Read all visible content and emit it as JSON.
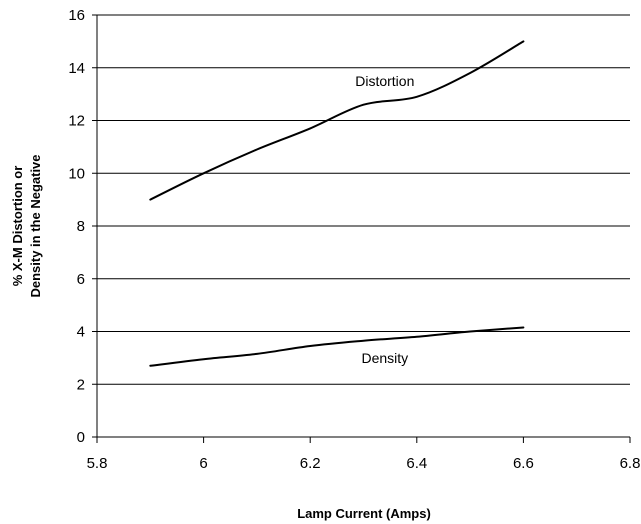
{
  "chart_data": {
    "type": "line",
    "title": "",
    "xlabel": "Lamp Current (Amps)",
    "ylabel_lines": [
      "% X-M Distortion or",
      "Density in the Negative"
    ],
    "xlim": [
      5.8,
      6.8
    ],
    "ylim": [
      0,
      16
    ],
    "x_ticks": [
      5.8,
      6,
      6.2,
      6.4,
      6.6,
      6.8
    ],
    "x_tick_labels": [
      "5.8",
      "6",
      "6.2",
      "6.4",
      "6.6",
      "6.8"
    ],
    "y_ticks": [
      0,
      2,
      4,
      6,
      8,
      10,
      12,
      14,
      16
    ],
    "y_tick_labels": [
      "0",
      "2",
      "4",
      "6",
      "8",
      "10",
      "12",
      "14",
      "16"
    ],
    "grid": "horizontal",
    "legend": "none",
    "series": [
      {
        "name": "Distortion",
        "color": "#000000",
        "x": [
          5.9,
          6.0,
          6.1,
          6.2,
          6.3,
          6.4,
          6.5,
          6.6
        ],
        "y": [
          9.0,
          10.0,
          10.9,
          11.7,
          12.6,
          12.9,
          13.8,
          15.0
        ]
      },
      {
        "name": "Density",
        "color": "#000000",
        "x": [
          5.9,
          6.0,
          6.1,
          6.2,
          6.3,
          6.4,
          6.5,
          6.6
        ],
        "y": [
          2.7,
          2.95,
          3.15,
          3.45,
          3.65,
          3.8,
          4.0,
          4.15
        ]
      }
    ],
    "annotations": [
      {
        "text": "Distortion",
        "x": 6.34,
        "y": 13.3
      },
      {
        "text": "Density",
        "x": 6.34,
        "y": 2.8
      }
    ]
  }
}
